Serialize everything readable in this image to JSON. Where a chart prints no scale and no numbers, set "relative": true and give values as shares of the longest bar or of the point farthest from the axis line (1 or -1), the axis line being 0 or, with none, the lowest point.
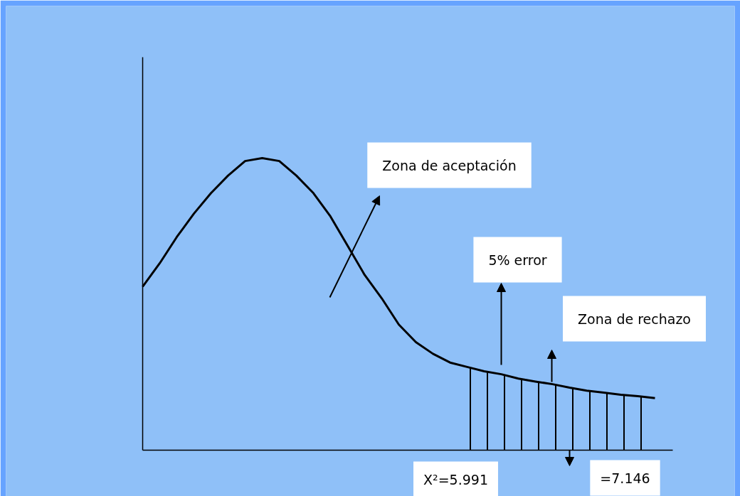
{
  "chart_data": {
    "type": "line",
    "relative": true,
    "categories": [
      null,
      null,
      null,
      null,
      null,
      null,
      null,
      null,
      null,
      null,
      null,
      null,
      null,
      null,
      null,
      null,
      null,
      null,
      null,
      null,
      null,
      null,
      null,
      null,
      null,
      null,
      null,
      null,
      null,
      null,
      null
    ],
    "series": [
      {
        "color": "#000000",
        "values": [
          0.56,
          0.64,
          0.73,
          0.81,
          0.88,
          0.94,
          0.99,
          1.0,
          0.99,
          0.94,
          0.88,
          0.8,
          0.7,
          0.6,
          0.52,
          0.43,
          0.37,
          0.33,
          0.3,
          0.285,
          0.27,
          0.26,
          0.245,
          0.235,
          0.226,
          0.214,
          0.204,
          0.197,
          0.19,
          0.185,
          0.178
        ]
      },
      {
        "type": "area",
        "color": "#000000",
        "values": [
          null,
          null,
          null,
          null,
          null,
          null,
          null,
          null,
          null,
          null,
          null,
          null,
          null,
          null,
          null,
          null,
          null,
          null,
          null,
          0.285,
          null,
          0.26,
          0.245,
          0.235,
          0.226,
          0.214,
          0.204,
          0.197,
          0.19,
          0.185,
          0.178
        ]
      }
    ],
    "annotations": [
      "Zona de aceptación",
      "5% error",
      "Zona de rechazo",
      "X²=5.991",
      "=7.146"
    ],
    "grid": false,
    "marker": "none",
    "line_style": "solid"
  }
}
